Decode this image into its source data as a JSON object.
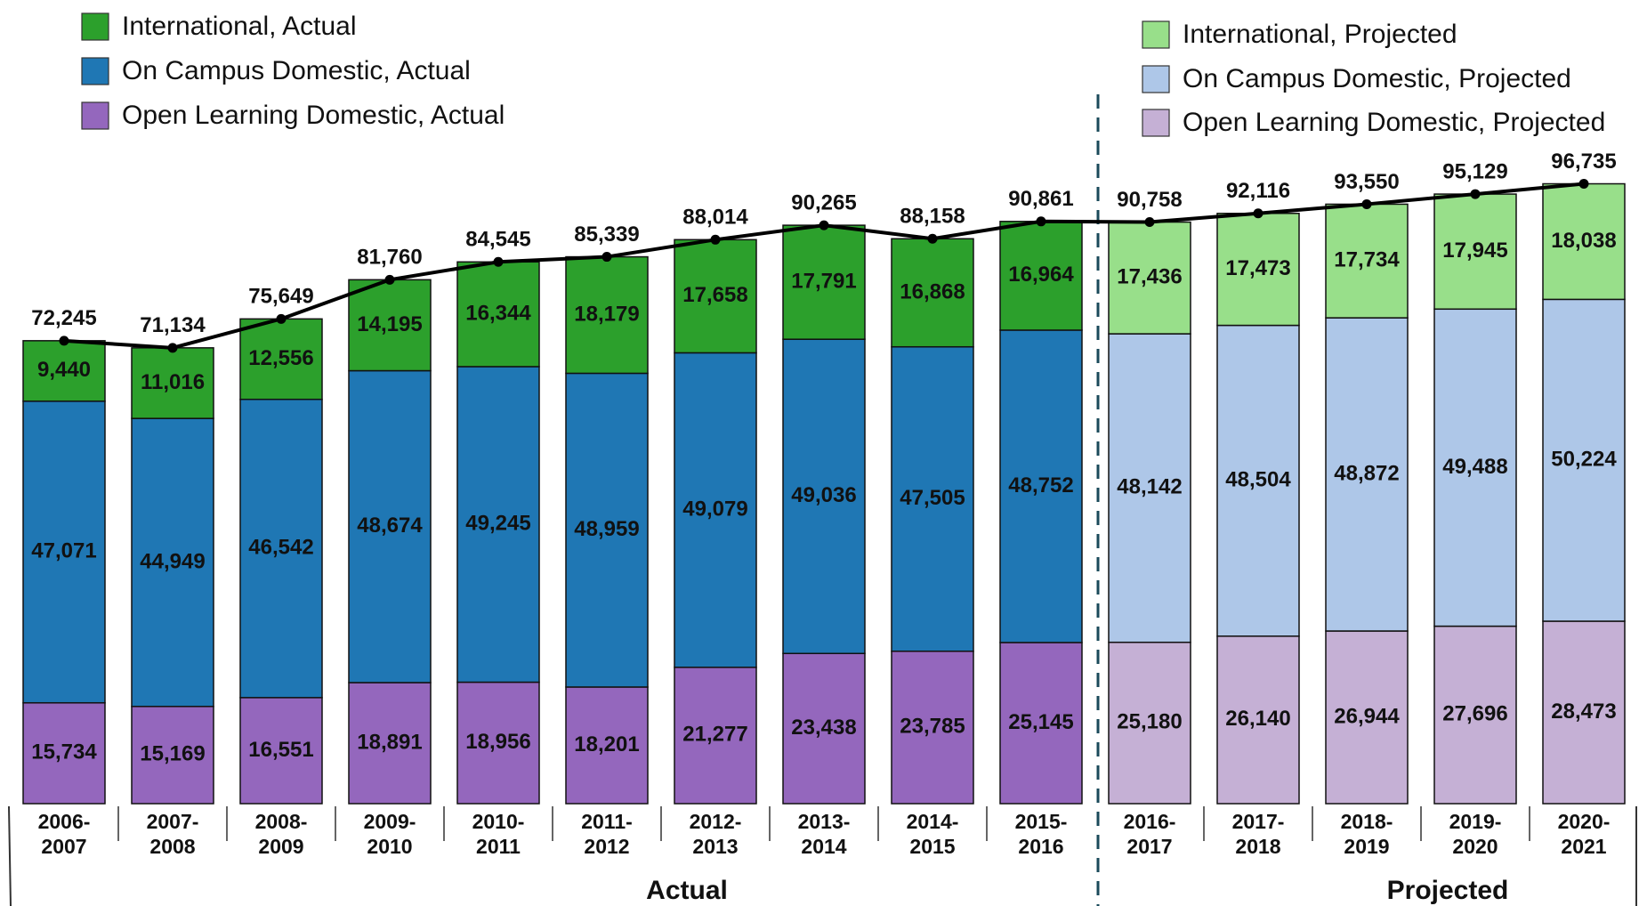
{
  "chart_data": {
    "type": "stacked_bar",
    "categories": [
      "2006-2007",
      "2007-2008",
      "2008-2009",
      "2009-2010",
      "2010-2011",
      "2011-2012",
      "2012-2013",
      "2013-2014",
      "2014-2015",
      "2015-2016",
      "2016-2017",
      "2017-2018",
      "2018-2019",
      "2019-2020",
      "2020-2021"
    ],
    "group_labels": [
      "Actual",
      "Projected"
    ],
    "series": [
      {
        "name": "International, Actual",
        "color": "#2ca02c",
        "values": [
          9440,
          11016,
          12556,
          14195,
          16344,
          18179,
          17658,
          17791,
          16868,
          16964,
          null,
          null,
          null,
          null,
          null
        ],
        "value_labels": [
          "9,440",
          "11,016",
          "12,556",
          "14,195",
          "16,344",
          "18,179",
          "17,658",
          "17,791",
          "16,868",
          "16,964",
          null,
          null,
          null,
          null,
          null
        ]
      },
      {
        "name": "On Campus Domestic, Actual",
        "color": "#1f77b4",
        "values": [
          47071,
          44949,
          46542,
          48674,
          49245,
          48959,
          49079,
          49036,
          47505,
          48752,
          null,
          null,
          null,
          null,
          null
        ],
        "value_labels": [
          "47,071",
          "44,949",
          "46,542",
          "48,674",
          "49,245",
          "48,959",
          "49,079",
          "49,036",
          "47,505",
          "48,752",
          null,
          null,
          null,
          null,
          null
        ]
      },
      {
        "name": "Open Learning Domestic, Actual",
        "color": "#9467bd",
        "values": [
          15734,
          15169,
          16551,
          18891,
          18956,
          18201,
          21277,
          23438,
          23785,
          25145,
          null,
          null,
          null,
          null,
          null
        ],
        "value_labels": [
          "15,734",
          "15,169",
          "16,551",
          "18,891",
          "18,956",
          "18,201",
          "21,277",
          "23,438",
          "23,785",
          "25,145",
          null,
          null,
          null,
          null,
          null
        ]
      },
      {
        "name": "International, Projected",
        "color": "#98df8a",
        "values": [
          null,
          null,
          null,
          null,
          null,
          null,
          null,
          null,
          null,
          null,
          17436,
          17473,
          17734,
          17945,
          18038
        ],
        "value_labels": [
          null,
          null,
          null,
          null,
          null,
          null,
          null,
          null,
          null,
          null,
          "17,436",
          "17,473",
          "17,734",
          "17,945",
          "18,038"
        ]
      },
      {
        "name": "On Campus Domestic, Projected",
        "color": "#aec7e8",
        "values": [
          null,
          null,
          null,
          null,
          null,
          null,
          null,
          null,
          null,
          null,
          48142,
          48504,
          48872,
          49488,
          50224
        ],
        "value_labels": [
          null,
          null,
          null,
          null,
          null,
          null,
          null,
          null,
          null,
          null,
          "48,142",
          "48,504",
          "48,872",
          "49,488",
          "50,224"
        ]
      },
      {
        "name": "Open Learning Domestic, Projected",
        "color": "#c5b0d5",
        "values": [
          null,
          null,
          null,
          null,
          null,
          null,
          null,
          null,
          null,
          null,
          25180,
          26140,
          26944,
          27696,
          28473
        ],
        "value_labels": [
          null,
          null,
          null,
          null,
          null,
          null,
          null,
          null,
          null,
          null,
          "25,180",
          "26,140",
          "26,944",
          "27,696",
          "28,473"
        ]
      }
    ],
    "totals": {
      "color": "#000000",
      "values": [
        72245,
        71134,
        75649,
        81760,
        84545,
        85339,
        88014,
        90265,
        88158,
        90861,
        90758,
        92116,
        93550,
        95129,
        96735
      ],
      "value_labels": [
        "72,245",
        "71,134",
        "75,649",
        "81,760",
        "84,545",
        "85,339",
        "88,014",
        "90,265",
        "88,158",
        "90,861",
        "90,758",
        "92,116",
        "93,550",
        "95,129",
        "96,735"
      ]
    }
  }
}
